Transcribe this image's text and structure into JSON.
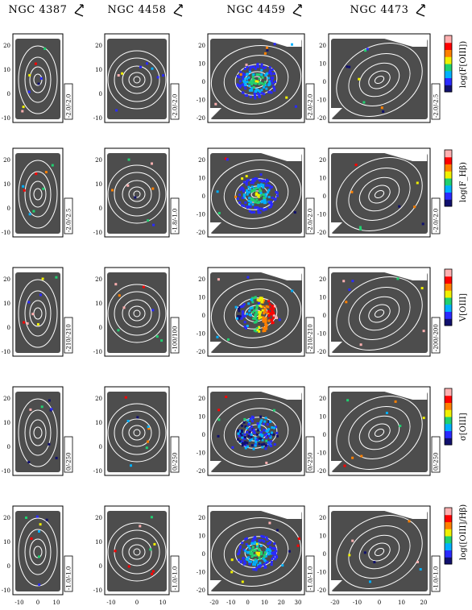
{
  "figure": {
    "columns": [
      {
        "name": "NGC 4387",
        "xticks": [
          "-10",
          "0",
          "10"
        ]
      },
      {
        "name": "NGC 4458",
        "xticks": [
          "-10",
          "0",
          "10"
        ]
      },
      {
        "name": "NGC 4459",
        "xticks": [
          "-20",
          "-10",
          "0",
          "10",
          "20",
          "30"
        ]
      },
      {
        "name": "NGC 4473",
        "xticks": [
          "-20",
          "-10",
          "0",
          "10",
          "20"
        ]
      }
    ],
    "colorbar_labels": [
      "log(F[OIII])",
      "log(F_Hβ)",
      "V[OIII]",
      "σ[OIII]",
      "log([OIII]/Hβ)"
    ],
    "range_labels": [
      [
        "-2.0/-2.0",
        "-2.0/-2.0",
        "-2.0/-2.0",
        "-2.0/-2.5"
      ],
      [
        "-2.0/-2.5",
        "-1.8/-1.0",
        "-2.0/-2.0",
        "-2.0/-2.0"
      ],
      [
        "-210/-210",
        "-100/100",
        "-210/-210",
        "-200/-200"
      ],
      [
        "0/-250",
        "0/-250",
        "0/-250",
        "0/-250"
      ],
      [
        "-1.0/-1.0",
        "-1.0/-1.0",
        "-1.0/-1.0",
        "-1.0/-1.0"
      ]
    ],
    "yticks_narrow": [
      "20",
      "10",
      "0",
      "-10"
    ],
    "yticks_wide": [
      "20",
      "10",
      "0",
      "-10",
      "-20"
    ],
    "colors": {
      "panel_bg": "#4d4d4d",
      "contour": "#ffffff",
      "colorbar": [
        "#10106e",
        "#2a2aff",
        "#00b0ff",
        "#20d070",
        "#f0f000",
        "#ff8000",
        "#ff0000",
        "#ffb0b0"
      ]
    }
  }
}
